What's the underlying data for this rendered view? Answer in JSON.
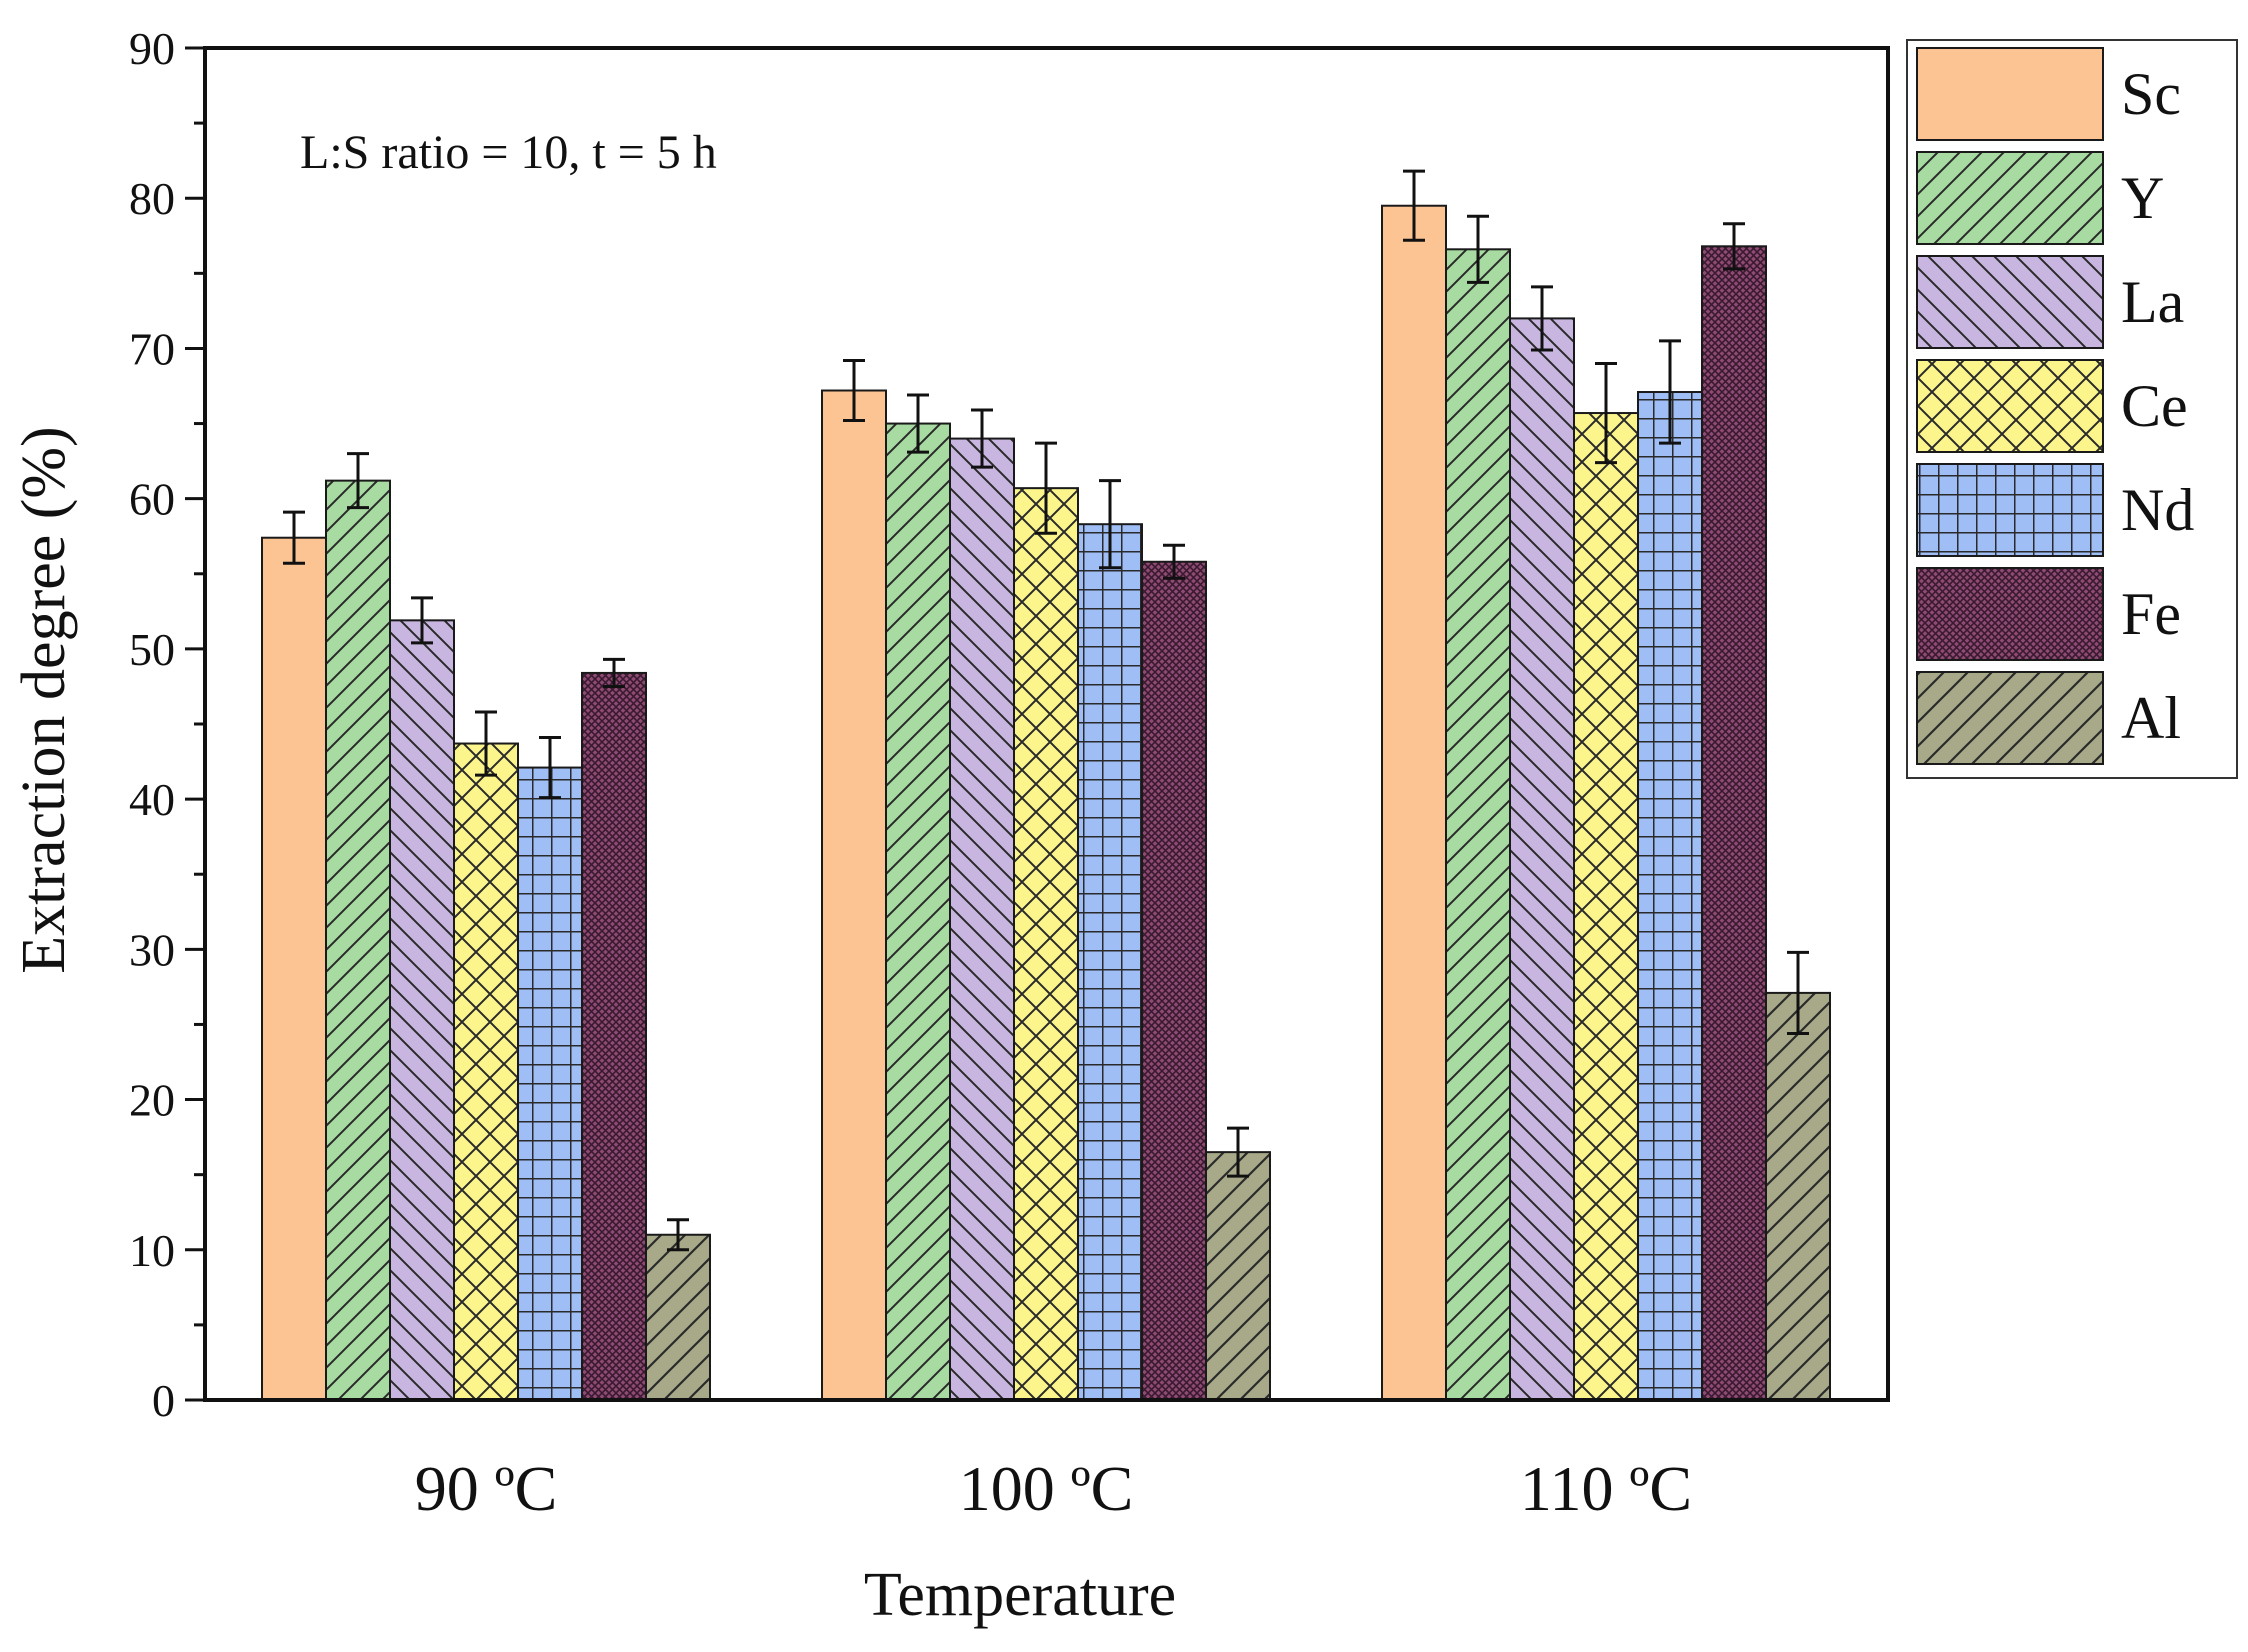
{
  "chart_data": {
    "type": "bar",
    "categories": [
      "90 ºC",
      "100 ºC",
      "110 ºC"
    ],
    "series": [
      {
        "name": "Sc",
        "values": [
          57.4,
          67.2,
          79.5
        ],
        "errors": [
          1.7,
          2.0,
          2.3
        ],
        "color": "#fcc493",
        "pattern": "none"
      },
      {
        "name": "Y",
        "values": [
          61.2,
          65.0,
          76.6
        ],
        "errors": [
          1.8,
          1.9,
          2.2
        ],
        "color": "#a7dba1",
        "pattern": "diag-right"
      },
      {
        "name": "La",
        "values": [
          51.9,
          64.0,
          72.0
        ],
        "errors": [
          1.5,
          1.9,
          2.1
        ],
        "color": "#c8b6e0",
        "pattern": "diag-left"
      },
      {
        "name": "Ce",
        "values": [
          43.7,
          60.7,
          65.7
        ],
        "errors": [
          2.1,
          3.0,
          3.3
        ],
        "color": "#fbf58c",
        "pattern": "crosshatch-diag"
      },
      {
        "name": "Nd",
        "values": [
          42.1,
          58.3,
          67.1
        ],
        "errors": [
          2.0,
          2.9,
          3.4
        ],
        "color": "#9fbef5",
        "pattern": "grid"
      },
      {
        "name": "Fe",
        "values": [
          48.4,
          55.8,
          76.8
        ],
        "errors": [
          0.9,
          1.1,
          1.5
        ],
        "color": "#8e4a75",
        "pattern": "dense"
      },
      {
        "name": "Al",
        "values": [
          11.0,
          16.5,
          27.1
        ],
        "errors": [
          1.0,
          1.6,
          2.7
        ],
        "color": "#a8a988",
        "pattern": "diag-right-dark"
      }
    ],
    "xlabel": "Temperature",
    "ylabel": "Extraction degree (%)",
    "ylim": [
      0,
      90
    ],
    "yticks": [
      0,
      10,
      20,
      30,
      40,
      50,
      60,
      70,
      80,
      90
    ],
    "annotation": "L:S ratio = 10, t = 5 h",
    "legend_position": "right-outside-top",
    "grid": false
  }
}
